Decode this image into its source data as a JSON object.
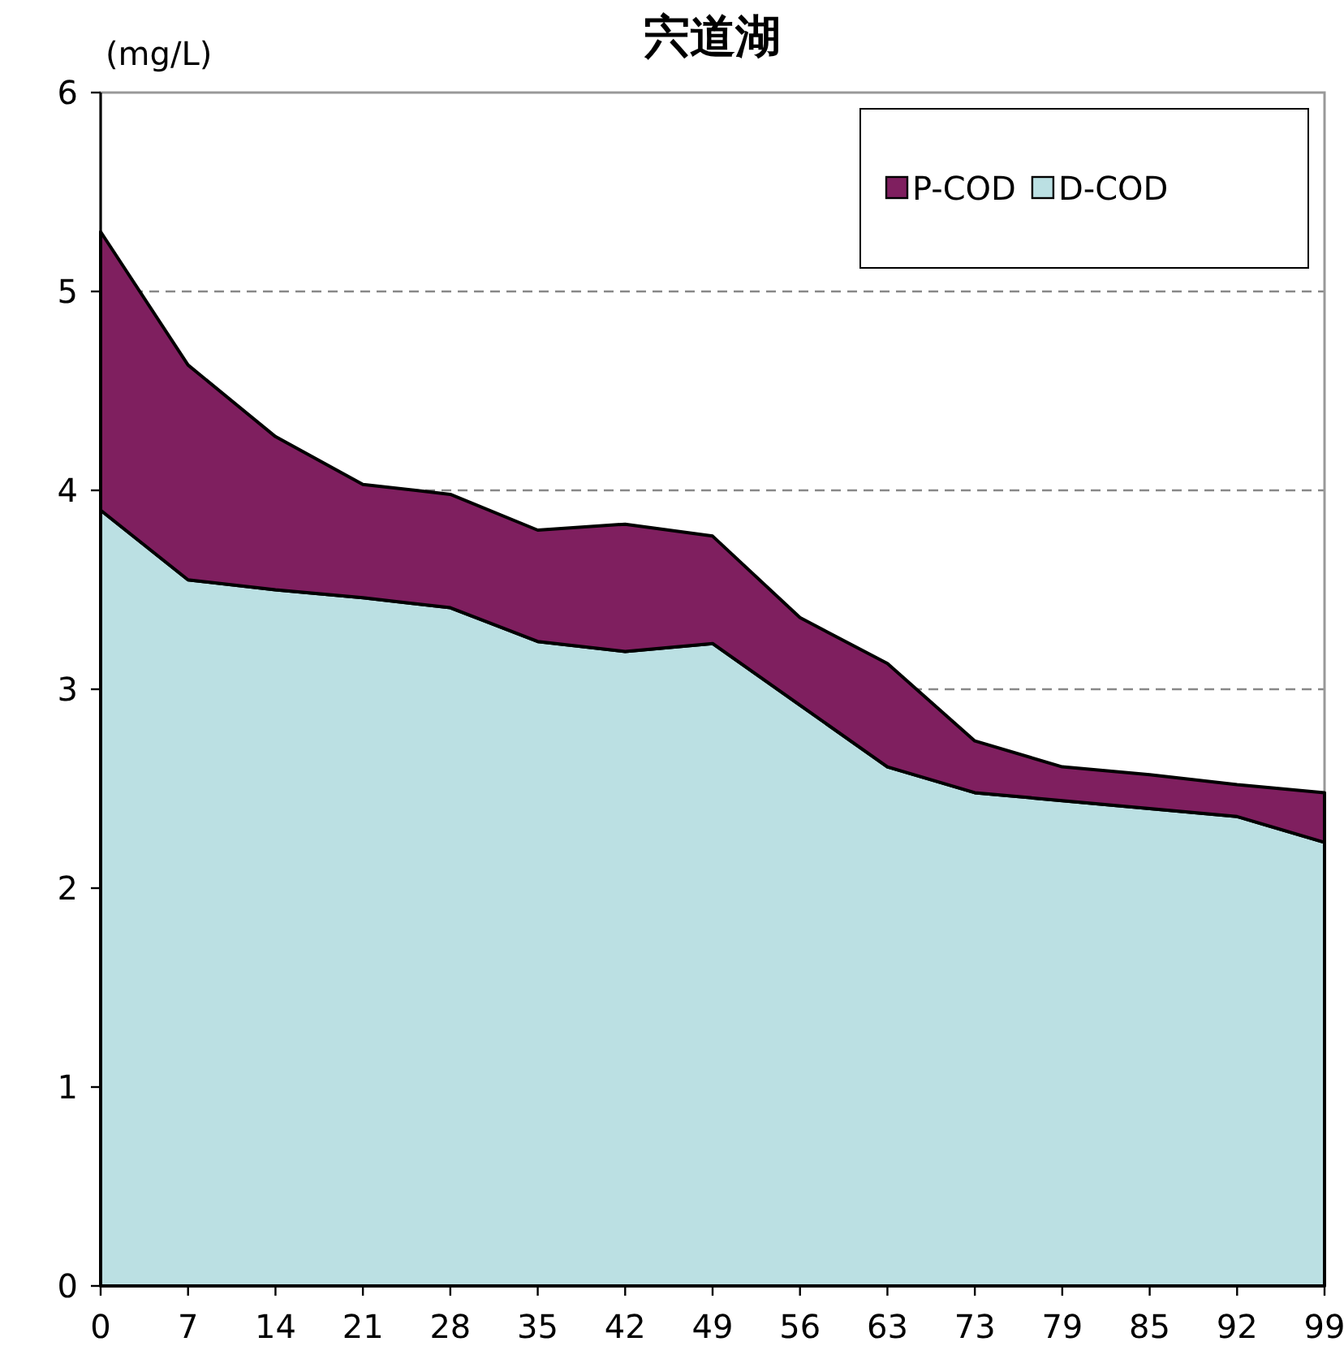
{
  "chart_data": {
    "type": "area",
    "stacked": true,
    "title": "宍道湖",
    "ylabel": "(mg/L)",
    "categories": [
      "0",
      "7",
      "14",
      "21",
      "28",
      "35",
      "42",
      "49",
      "56",
      "63",
      "73",
      "79",
      "85",
      "92",
      "99"
    ],
    "series": [
      {
        "name": "D-COD",
        "color": "#bbe0e3",
        "values": [
          3.9,
          3.55,
          3.5,
          3.46,
          3.41,
          3.24,
          3.19,
          3.23,
          2.92,
          2.61,
          2.48,
          2.44,
          2.4,
          2.36,
          2.23
        ]
      },
      {
        "name": "P-COD",
        "color": "#7f1f5f",
        "values": [
          1.4,
          1.08,
          0.77,
          0.57,
          0.57,
          0.56,
          0.64,
          0.54,
          0.44,
          0.52,
          0.26,
          0.17,
          0.17,
          0.16,
          0.25
        ]
      }
    ],
    "ylim": [
      0,
      6
    ],
    "yticks": [
      0,
      1,
      2,
      3,
      4,
      5,
      6
    ],
    "grid": "y",
    "legend": "top right"
  }
}
